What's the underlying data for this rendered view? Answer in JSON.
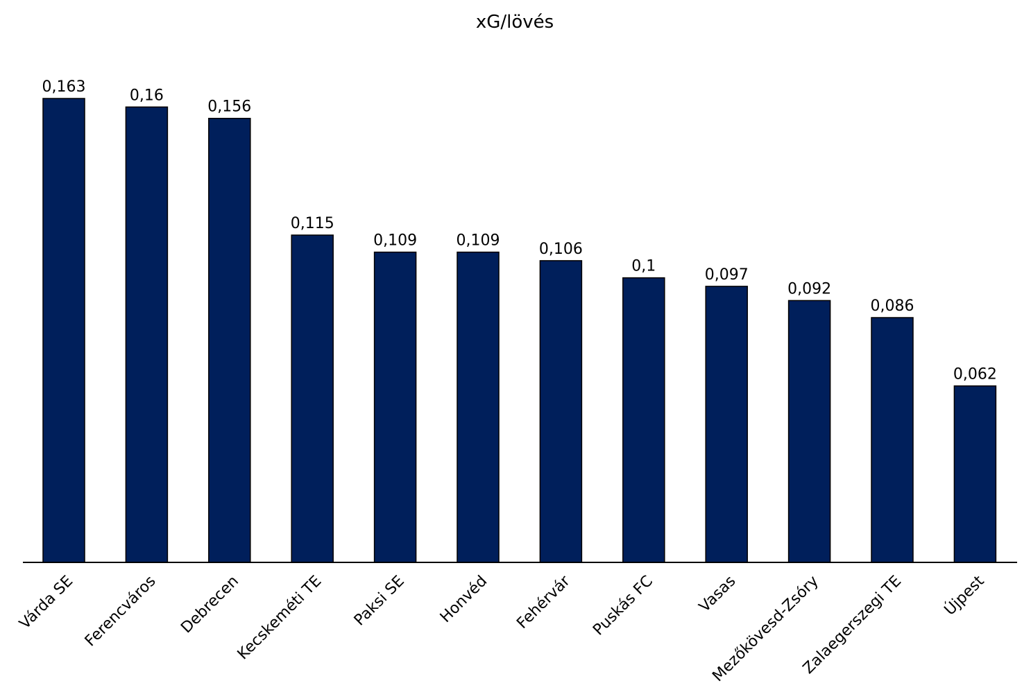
{
  "chart_data": {
    "type": "bar",
    "title": "xG/lövés",
    "categories": [
      "Várda SE",
      "Ferencváros",
      "Debrecen",
      "Kecskeméti TE",
      "Paksi SE",
      "Honvéd",
      "Fehérvár",
      "Puskás FC",
      "Vasas",
      "Mezőkövesd-Zsóry",
      "Zalaegerszegi TE",
      "Újpest"
    ],
    "values": [
      0.163,
      0.16,
      0.156,
      0.115,
      0.109,
      0.109,
      0.106,
      0.1,
      0.097,
      0.092,
      0.086,
      0.062
    ],
    "data_labels": [
      "0,163",
      "0,16",
      "0,156",
      "0,115",
      "0,109",
      "0,109",
      "0,106",
      "0,1",
      "0,097",
      "0,092",
      "0,086",
      "0,062"
    ],
    "ylim": [
      0,
      0.163
    ],
    "grid": false,
    "legend": "none",
    "colors": {
      "bar_fill": "#001f5b",
      "bar_stroke": "#000000",
      "axis": "#000000"
    }
  }
}
